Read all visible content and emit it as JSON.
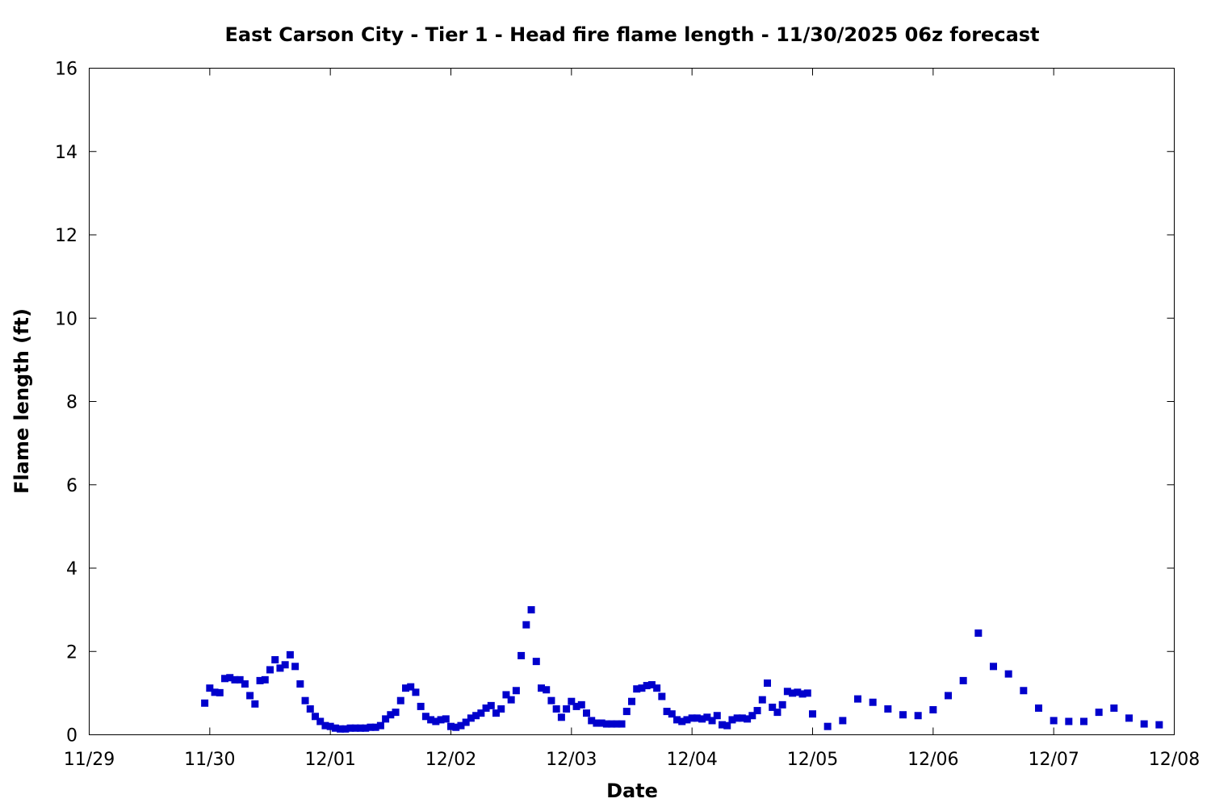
{
  "chart_data": {
    "type": "scatter",
    "title": "East Carson City - Tier 1 - Head fire flame length - 11/30/2025 06z forecast",
    "xlabel": "Date",
    "ylabel": "Flame length (ft)",
    "x_ticks": [
      "11/29",
      "11/30",
      "12/01",
      "12/02",
      "12/03",
      "12/04",
      "12/05",
      "12/06",
      "12/07",
      "12/08"
    ],
    "y_ticks": [
      "0",
      "2",
      "4",
      "6",
      "8",
      "10",
      "12",
      "14",
      "16"
    ],
    "xlim": [
      "2025-11-29 00:00",
      "2025-12-08 00:00"
    ],
    "ylim": [
      0,
      16
    ],
    "grid": false,
    "marker": "square",
    "colors": {
      "points": "#0000cc",
      "axes": "#000000",
      "background": "#ffffff"
    },
    "series": [
      {
        "points": [
          [
            "2025-11-29 23:00",
            0.76
          ],
          [
            "2025-11-30 00:00",
            1.12
          ],
          [
            "2025-11-30 01:00",
            1.02
          ],
          [
            "2025-11-30 02:00",
            1.01
          ],
          [
            "2025-11-30 03:00",
            1.35
          ],
          [
            "2025-11-30 04:00",
            1.37
          ],
          [
            "2025-11-30 05:00",
            1.32
          ],
          [
            "2025-11-30 06:00",
            1.32
          ],
          [
            "2025-11-30 07:00",
            1.22
          ],
          [
            "2025-11-30 08:00",
            0.94
          ],
          [
            "2025-11-30 09:00",
            0.74
          ],
          [
            "2025-11-30 10:00",
            1.3
          ],
          [
            "2025-11-30 11:00",
            1.32
          ],
          [
            "2025-11-30 12:00",
            1.56
          ],
          [
            "2025-11-30 13:00",
            1.8
          ],
          [
            "2025-11-30 14:00",
            1.6
          ],
          [
            "2025-11-30 15:00",
            1.68
          ],
          [
            "2025-11-30 16:00",
            1.92
          ],
          [
            "2025-11-30 17:00",
            1.64
          ],
          [
            "2025-11-30 18:00",
            1.22
          ],
          [
            "2025-11-30 19:00",
            0.82
          ],
          [
            "2025-11-30 20:00",
            0.62
          ],
          [
            "2025-11-30 21:00",
            0.44
          ],
          [
            "2025-11-30 22:00",
            0.32
          ],
          [
            "2025-11-30 23:00",
            0.22
          ],
          [
            "2025-12-01 00:00",
            0.2
          ],
          [
            "2025-12-01 01:00",
            0.16
          ],
          [
            "2025-12-01 02:00",
            0.14
          ],
          [
            "2025-12-01 03:00",
            0.14
          ],
          [
            "2025-12-01 04:00",
            0.16
          ],
          [
            "2025-12-01 05:00",
            0.16
          ],
          [
            "2025-12-01 06:00",
            0.16
          ],
          [
            "2025-12-01 07:00",
            0.16
          ],
          [
            "2025-12-01 08:00",
            0.18
          ],
          [
            "2025-12-01 09:00",
            0.18
          ],
          [
            "2025-12-01 10:00",
            0.22
          ],
          [
            "2025-12-01 11:00",
            0.38
          ],
          [
            "2025-12-01 12:00",
            0.48
          ],
          [
            "2025-12-01 13:00",
            0.54
          ],
          [
            "2025-12-01 14:00",
            0.82
          ],
          [
            "2025-12-01 15:00",
            1.12
          ],
          [
            "2025-12-01 16:00",
            1.15
          ],
          [
            "2025-12-01 17:00",
            1.02
          ],
          [
            "2025-12-01 18:00",
            0.68
          ],
          [
            "2025-12-01 19:00",
            0.44
          ],
          [
            "2025-12-01 20:00",
            0.36
          ],
          [
            "2025-12-01 21:00",
            0.32
          ],
          [
            "2025-12-01 22:00",
            0.36
          ],
          [
            "2025-12-01 23:00",
            0.38
          ],
          [
            "2025-12-02 00:00",
            0.2
          ],
          [
            "2025-12-02 01:00",
            0.18
          ],
          [
            "2025-12-02 02:00",
            0.22
          ],
          [
            "2025-12-02 03:00",
            0.3
          ],
          [
            "2025-12-02 04:00",
            0.4
          ],
          [
            "2025-12-02 05:00",
            0.46
          ],
          [
            "2025-12-02 06:00",
            0.52
          ],
          [
            "2025-12-02 07:00",
            0.64
          ],
          [
            "2025-12-02 08:00",
            0.7
          ],
          [
            "2025-12-02 09:00",
            0.52
          ],
          [
            "2025-12-02 10:00",
            0.62
          ],
          [
            "2025-12-02 11:00",
            0.96
          ],
          [
            "2025-12-02 12:00",
            0.84
          ],
          [
            "2025-12-02 13:00",
            1.06
          ],
          [
            "2025-12-02 14:00",
            1.9
          ],
          [
            "2025-12-02 15:00",
            2.64
          ],
          [
            "2025-12-02 16:00",
            3.0
          ],
          [
            "2025-12-02 17:00",
            1.76
          ],
          [
            "2025-12-02 18:00",
            1.12
          ],
          [
            "2025-12-02 19:00",
            1.08
          ],
          [
            "2025-12-02 20:00",
            0.82
          ],
          [
            "2025-12-02 21:00",
            0.62
          ],
          [
            "2025-12-02 22:00",
            0.42
          ],
          [
            "2025-12-02 23:00",
            0.62
          ],
          [
            "2025-12-03 00:00",
            0.8
          ],
          [
            "2025-12-03 01:00",
            0.68
          ],
          [
            "2025-12-03 02:00",
            0.72
          ],
          [
            "2025-12-03 03:00",
            0.52
          ],
          [
            "2025-12-03 04:00",
            0.34
          ],
          [
            "2025-12-03 05:00",
            0.28
          ],
          [
            "2025-12-03 06:00",
            0.28
          ],
          [
            "2025-12-03 07:00",
            0.26
          ],
          [
            "2025-12-03 08:00",
            0.26
          ],
          [
            "2025-12-03 09:00",
            0.26
          ],
          [
            "2025-12-03 10:00",
            0.26
          ],
          [
            "2025-12-03 11:00",
            0.56
          ],
          [
            "2025-12-03 12:00",
            0.8
          ],
          [
            "2025-12-03 13:00",
            1.1
          ],
          [
            "2025-12-03 14:00",
            1.12
          ],
          [
            "2025-12-03 15:00",
            1.18
          ],
          [
            "2025-12-03 16:00",
            1.2
          ],
          [
            "2025-12-03 17:00",
            1.12
          ],
          [
            "2025-12-03 18:00",
            0.92
          ],
          [
            "2025-12-03 19:00",
            0.56
          ],
          [
            "2025-12-03 20:00",
            0.5
          ],
          [
            "2025-12-03 21:00",
            0.36
          ],
          [
            "2025-12-03 22:00",
            0.32
          ],
          [
            "2025-12-03 23:00",
            0.36
          ],
          [
            "2025-12-04 00:00",
            0.4
          ],
          [
            "2025-12-04 01:00",
            0.4
          ],
          [
            "2025-12-04 02:00",
            0.38
          ],
          [
            "2025-12-04 03:00",
            0.42
          ],
          [
            "2025-12-04 04:00",
            0.34
          ],
          [
            "2025-12-04 05:00",
            0.46
          ],
          [
            "2025-12-04 06:00",
            0.24
          ],
          [
            "2025-12-04 07:00",
            0.22
          ],
          [
            "2025-12-04 08:00",
            0.36
          ],
          [
            "2025-12-04 09:00",
            0.4
          ],
          [
            "2025-12-04 10:00",
            0.4
          ],
          [
            "2025-12-04 11:00",
            0.38
          ],
          [
            "2025-12-04 12:00",
            0.46
          ],
          [
            "2025-12-04 13:00",
            0.58
          ],
          [
            "2025-12-04 14:00",
            0.84
          ],
          [
            "2025-12-04 15:00",
            1.24
          ],
          [
            "2025-12-04 16:00",
            0.66
          ],
          [
            "2025-12-04 17:00",
            0.54
          ],
          [
            "2025-12-04 18:00",
            0.72
          ],
          [
            "2025-12-04 19:00",
            1.04
          ],
          [
            "2025-12-04 20:00",
            1.0
          ],
          [
            "2025-12-04 21:00",
            1.02
          ],
          [
            "2025-12-04 22:00",
            0.98
          ],
          [
            "2025-12-04 23:00",
            1.0
          ],
          [
            "2025-12-05 00:00",
            0.5
          ],
          [
            "2025-12-05 03:00",
            0.2
          ],
          [
            "2025-12-05 06:00",
            0.34
          ],
          [
            "2025-12-05 09:00",
            0.86
          ],
          [
            "2025-12-05 12:00",
            0.78
          ],
          [
            "2025-12-05 15:00",
            0.62
          ],
          [
            "2025-12-05 18:00",
            0.48
          ],
          [
            "2025-12-05 21:00",
            0.46
          ],
          [
            "2025-12-06 00:00",
            0.6
          ],
          [
            "2025-12-06 03:00",
            0.94
          ],
          [
            "2025-12-06 06:00",
            1.3
          ],
          [
            "2025-12-06 09:00",
            2.44
          ],
          [
            "2025-12-06 12:00",
            1.64
          ],
          [
            "2025-12-06 15:00",
            1.46
          ],
          [
            "2025-12-06 18:00",
            1.06
          ],
          [
            "2025-12-06 21:00",
            0.64
          ],
          [
            "2025-12-07 00:00",
            0.34
          ],
          [
            "2025-12-07 03:00",
            0.32
          ],
          [
            "2025-12-07 06:00",
            0.32
          ],
          [
            "2025-12-07 09:00",
            0.54
          ],
          [
            "2025-12-07 12:00",
            0.64
          ],
          [
            "2025-12-07 15:00",
            0.4
          ],
          [
            "2025-12-07 18:00",
            0.26
          ],
          [
            "2025-12-07 21:00",
            0.24
          ]
        ]
      }
    ]
  }
}
